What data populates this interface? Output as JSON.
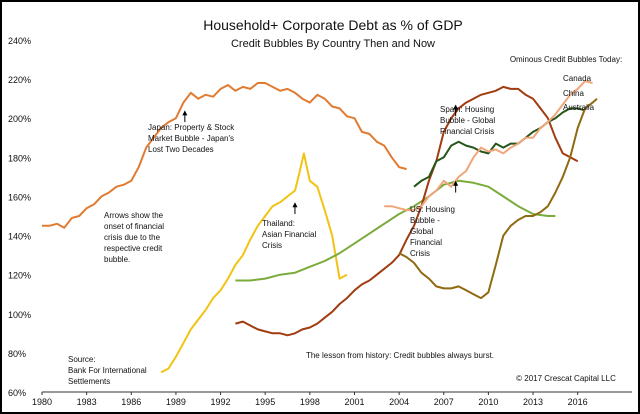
{
  "chart_data": {
    "type": "line",
    "title": "Household+ Corporate Debt as % of GDP",
    "subtitle": "Credit Bubbles By Country Then and Now",
    "xlabel": "",
    "ylabel": "",
    "xlim": [
      1980,
      2017.5
    ],
    "ylim": [
      60,
      240
    ],
    "x_ticks": [
      "1980",
      "1983",
      "1986",
      "1989",
      "1992",
      "1995",
      "1998",
      "2001",
      "2004",
      "2007",
      "2010",
      "2013",
      "2016"
    ],
    "y_ticks": [
      "60%",
      "80%",
      "100%",
      "120%",
      "140%",
      "160%",
      "180%",
      "200%",
      "220%",
      "240%"
    ],
    "grid": false,
    "series": [
      {
        "name": "Japan",
        "color": "#e07b32",
        "points": [
          [
            1980,
            145
          ],
          [
            1980.5,
            145
          ],
          [
            1981,
            146
          ],
          [
            1981.5,
            144
          ],
          [
            1982,
            149
          ],
          [
            1982.5,
            150
          ],
          [
            1983,
            154
          ],
          [
            1983.5,
            156
          ],
          [
            1984,
            160
          ],
          [
            1984.5,
            162
          ],
          [
            1985,
            165
          ],
          [
            1985.5,
            166
          ],
          [
            1986,
            168
          ],
          [
            1986.5,
            175
          ],
          [
            1987,
            185
          ],
          [
            1987.5,
            190
          ],
          [
            1988,
            195
          ],
          [
            1988.5,
            198
          ],
          [
            1989,
            200
          ],
          [
            1989.5,
            208
          ],
          [
            1990,
            213
          ],
          [
            1990.5,
            210
          ],
          [
            1991,
            212
          ],
          [
            1991.5,
            211
          ],
          [
            1992,
            215
          ],
          [
            1992.5,
            217
          ],
          [
            1993,
            214
          ],
          [
            1993.5,
            216
          ],
          [
            1994,
            215
          ],
          [
            1994.5,
            218
          ],
          [
            1995,
            218
          ],
          [
            1995.5,
            216
          ],
          [
            1996,
            214
          ],
          [
            1996.5,
            215
          ],
          [
            1997,
            213
          ],
          [
            1997.5,
            210
          ],
          [
            1998,
            208
          ],
          [
            1998.5,
            212
          ],
          [
            1999,
            210
          ],
          [
            1999.5,
            206
          ],
          [
            2000,
            205
          ],
          [
            2000.5,
            201
          ],
          [
            2001,
            200
          ],
          [
            2001.5,
            193
          ],
          [
            2002,
            192
          ],
          [
            2002.5,
            188
          ],
          [
            2003,
            186
          ],
          [
            2003.5,
            180
          ],
          [
            2004,
            175
          ],
          [
            2004.5,
            174
          ]
        ]
      },
      {
        "name": "Thailand",
        "color": "#f2c314",
        "points": [
          [
            1988,
            70
          ],
          [
            1988.5,
            72
          ],
          [
            1989,
            78
          ],
          [
            1989.5,
            85
          ],
          [
            1990,
            92
          ],
          [
            1990.5,
            97
          ],
          [
            1991,
            102
          ],
          [
            1991.5,
            108
          ],
          [
            1992,
            112
          ],
          [
            1992.5,
            118
          ],
          [
            1993,
            125
          ],
          [
            1993.5,
            130
          ],
          [
            1994,
            138
          ],
          [
            1994.5,
            145
          ],
          [
            1995,
            150
          ],
          [
            1995.5,
            155
          ],
          [
            1996,
            157
          ],
          [
            1996.5,
            160
          ],
          [
            1997,
            163
          ],
          [
            1997.3,
            172
          ],
          [
            1997.6,
            182
          ],
          [
            1998,
            168
          ],
          [
            1998.5,
            165
          ],
          [
            1999,
            153
          ],
          [
            1999.5,
            140
          ],
          [
            2000,
            118
          ],
          [
            2000.5,
            120
          ]
        ]
      },
      {
        "name": "US",
        "color": "#7aab3b",
        "points": [
          [
            1993,
            117
          ],
          [
            1994,
            117
          ],
          [
            1995,
            118
          ],
          [
            1996,
            120
          ],
          [
            1997,
            121
          ],
          [
            1998,
            124
          ],
          [
            1999,
            127
          ],
          [
            2000,
            131
          ],
          [
            2001,
            136
          ],
          [
            2002,
            141
          ],
          [
            2003,
            146
          ],
          [
            2004,
            151
          ],
          [
            2005,
            155
          ],
          [
            2006,
            160
          ],
          [
            2007,
            166
          ],
          [
            2008,
            168
          ],
          [
            2009,
            167
          ],
          [
            2010,
            165
          ],
          [
            2011,
            160
          ],
          [
            2012,
            155
          ],
          [
            2013,
            151
          ],
          [
            2014,
            150
          ],
          [
            2014.5,
            150
          ]
        ]
      },
      {
        "name": "Spain",
        "color": "#a13b10",
        "points": [
          [
            1993,
            95
          ],
          [
            1993.5,
            96
          ],
          [
            1994,
            94
          ],
          [
            1994.5,
            92
          ],
          [
            1995,
            91
          ],
          [
            1995.5,
            90
          ],
          [
            1996,
            90
          ],
          [
            1996.5,
            89
          ],
          [
            1997,
            90
          ],
          [
            1997.5,
            92
          ],
          [
            1998,
            93
          ],
          [
            1998.5,
            95
          ],
          [
            1999,
            98
          ],
          [
            1999.5,
            101
          ],
          [
            2000,
            105
          ],
          [
            2000.5,
            108
          ],
          [
            2001,
            112
          ],
          [
            2001.5,
            115
          ],
          [
            2002,
            117
          ],
          [
            2002.5,
            120
          ],
          [
            2003,
            123
          ],
          [
            2003.5,
            126
          ],
          [
            2004,
            130
          ],
          [
            2004.5,
            138
          ],
          [
            2005,
            145
          ],
          [
            2005.5,
            155
          ],
          [
            2006,
            168
          ],
          [
            2006.5,
            178
          ],
          [
            2007,
            193
          ],
          [
            2007.5,
            200
          ],
          [
            2008,
            205
          ],
          [
            2008.5,
            208
          ],
          [
            2009,
            210
          ],
          [
            2009.5,
            212
          ],
          [
            2010,
            213
          ],
          [
            2010.5,
            214
          ],
          [
            2011,
            216
          ],
          [
            2011.5,
            215
          ],
          [
            2012,
            215
          ],
          [
            2012.5,
            212
          ],
          [
            2013,
            210
          ],
          [
            2013.5,
            205
          ],
          [
            2014,
            200
          ],
          [
            2014.5,
            190
          ],
          [
            2015,
            182
          ],
          [
            2015.5,
            180
          ],
          [
            2016,
            178
          ]
        ]
      },
      {
        "name": "China",
        "color": "#27561a",
        "points": [
          [
            2005,
            165
          ],
          [
            2005.5,
            168
          ],
          [
            2006,
            170
          ],
          [
            2006.5,
            178
          ],
          [
            2007,
            180
          ],
          [
            2007.5,
            186
          ],
          [
            2008,
            188
          ],
          [
            2008.5,
            186
          ],
          [
            2009,
            185
          ],
          [
            2009.5,
            183
          ],
          [
            2010,
            182
          ],
          [
            2010.5,
            187
          ],
          [
            2011,
            185
          ],
          [
            2011.5,
            187
          ],
          [
            2012,
            187
          ],
          [
            2012.5,
            190
          ],
          [
            2013,
            193
          ],
          [
            2013.5,
            195
          ],
          [
            2014,
            198
          ],
          [
            2014.5,
            200
          ],
          [
            2015,
            203
          ],
          [
            2015.5,
            205
          ],
          [
            2016,
            205
          ],
          [
            2016.5,
            204
          ]
        ]
      },
      {
        "name": "Canada",
        "color": "#f0a57a",
        "points": [
          [
            2003,
            155
          ],
          [
            2003.5,
            155
          ],
          [
            2004,
            154
          ],
          [
            2004.5,
            153
          ],
          [
            2005,
            153
          ],
          [
            2005.5,
            155
          ],
          [
            2006,
            160
          ],
          [
            2006.5,
            163
          ],
          [
            2007,
            168
          ],
          [
            2007.5,
            165
          ],
          [
            2008,
            170
          ],
          [
            2008.5,
            173
          ],
          [
            2009,
            180
          ],
          [
            2009.5,
            185
          ],
          [
            2010,
            183
          ],
          [
            2010.5,
            184
          ],
          [
            2011,
            182
          ],
          [
            2011.5,
            185
          ],
          [
            2012,
            187
          ],
          [
            2012.5,
            190
          ],
          [
            2013,
            190
          ],
          [
            2013.5,
            195
          ],
          [
            2014,
            198
          ],
          [
            2014.5,
            202
          ],
          [
            2015,
            207
          ],
          [
            2015.5,
            212
          ],
          [
            2016,
            215
          ],
          [
            2016.5,
            219
          ],
          [
            2017,
            218
          ]
        ]
      },
      {
        "name": "Australia",
        "color": "#8f6a10",
        "points": [
          [
            2004,
            131
          ],
          [
            2004.5,
            129
          ],
          [
            2005,
            126
          ],
          [
            2005.5,
            121
          ],
          [
            2006,
            118
          ],
          [
            2006.5,
            114
          ],
          [
            2007,
            113
          ],
          [
            2007.5,
            113
          ],
          [
            2008,
            114
          ],
          [
            2008.5,
            112
          ],
          [
            2009,
            110
          ],
          [
            2009.5,
            108
          ],
          [
            2010,
            111
          ],
          [
            2010.5,
            125
          ],
          [
            2011,
            140
          ],
          [
            2011.5,
            145
          ],
          [
            2012,
            148
          ],
          [
            2012.5,
            150
          ],
          [
            2013,
            150
          ],
          [
            2013.5,
            152
          ],
          [
            2014,
            155
          ],
          [
            2014.5,
            162
          ],
          [
            2015,
            170
          ],
          [
            2015.5,
            180
          ],
          [
            2016,
            195
          ],
          [
            2016.5,
            205
          ],
          [
            2017,
            208
          ],
          [
            2017.3,
            210
          ]
        ]
      }
    ],
    "legend": {
      "header": "Ominous Credit Bubbles Today:",
      "placement": "top-right",
      "entries": [
        "Canada",
        "China",
        "Australia"
      ]
    },
    "annotations": [
      {
        "id": "japan",
        "lines": [
          "Japan: Property & Stock",
          "Market Bubble - Japan's",
          "Lost Two Decades"
        ],
        "arrow_x": 1989.6,
        "arrow_y": [
          198,
          204
        ]
      },
      {
        "id": "thailand",
        "lines": [
          "Thailand:",
          "Asian Financial",
          "Crisis"
        ],
        "arrow_x": 1997.0,
        "arrow_y": [
          151,
          157
        ]
      },
      {
        "id": "spain",
        "lines": [
          "Spain: Housing",
          "Bubble - Global",
          "Financial Crisis"
        ],
        "arrow_x": 2007.8,
        "arrow_y": [
          201,
          207
        ]
      },
      {
        "id": "us",
        "lines": [
          "US: Housing",
          "Bubble -",
          "Global",
          "Financial",
          "Crisis"
        ],
        "arrow_x": 2007.8,
        "arrow_y": [
          162,
          168
        ]
      },
      {
        "id": "arrows_note",
        "lines": [
          "Arrows show the",
          "onset of financial",
          "crisis due to the",
          "respective credit",
          "bubble."
        ]
      },
      {
        "id": "source",
        "lines": [
          "Source:",
          "Bank For International",
          "Settlements"
        ]
      },
      {
        "id": "lesson",
        "lines": [
          "The lesson from history: Credit bubbles always burst."
        ]
      },
      {
        "id": "copyright",
        "lines": [
          "© 2017 Crescat Capital LLC"
        ]
      }
    ]
  }
}
